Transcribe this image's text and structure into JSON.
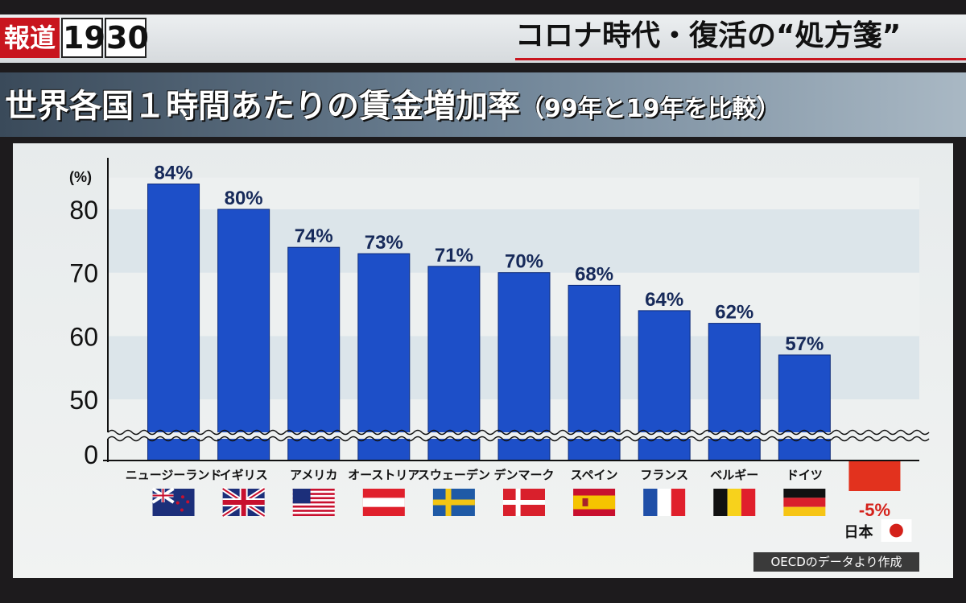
{
  "program": {
    "logo_red": "報道",
    "logo_hour": "19",
    "logo_min": "30",
    "title": "コロナ時代・復活の“処方箋”"
  },
  "headline": {
    "main": "世界各国１時間あたりの賃金増加率",
    "sub": "（99年と19年を比較）"
  },
  "source": "OECDのデータより作成",
  "colors": {
    "bar": "#1d4fc8",
    "negative_bar": "#e2321e",
    "value_label": "#172a5a"
  },
  "chart_data": {
    "type": "bar",
    "y_unit_label": "(%)",
    "ylim_upper": [
      45,
      85
    ],
    "axis_break": true,
    "yticks": [
      0,
      50,
      60,
      70,
      80
    ],
    "grid": "alternating bands",
    "categories": [
      "ニュージーランド",
      "イギリス",
      "アメリカ",
      "オーストリア",
      "スウェーデン",
      "デンマーク",
      "スペイン",
      "フランス",
      "ベルギー",
      "ドイツ",
      "日本"
    ],
    "values": [
      84,
      80,
      74,
      73,
      71,
      70,
      68,
      64,
      62,
      57,
      -5
    ],
    "value_labels": [
      "84%",
      "80%",
      "74%",
      "73%",
      "71%",
      "70%",
      "68%",
      "64%",
      "62%",
      "57%",
      "-5%"
    ],
    "flags": [
      "new-zealand-flag",
      "uk-flag",
      "usa-flag",
      "austria-flag",
      "sweden-flag",
      "denmark-flag",
      "spain-flag",
      "france-flag",
      "belgium-flag",
      "germany-flag",
      "japan-flag"
    ]
  }
}
